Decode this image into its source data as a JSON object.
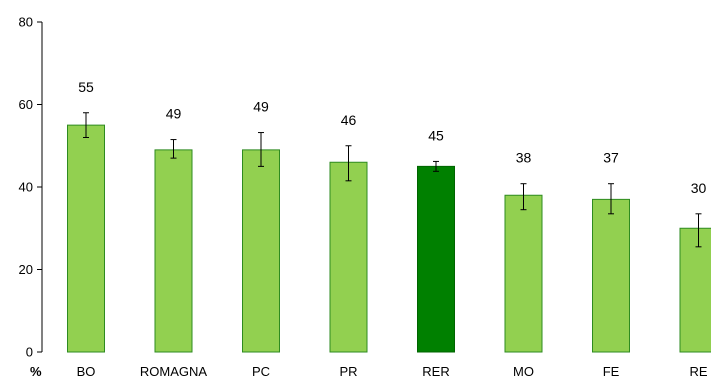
{
  "chart_data": {
    "type": "bar",
    "title": "",
    "xlabel": "",
    "ylabel": "%",
    "ylim": [
      0,
      80
    ],
    "yticks": [
      0,
      20,
      40,
      60,
      80
    ],
    "grid": false,
    "categories": [
      "BO",
      "ROMAGNA",
      "PC",
      "PR",
      "RER",
      "MO",
      "FE",
      "RE"
    ],
    "values": [
      55,
      49,
      49,
      46,
      45,
      38,
      37,
      30
    ],
    "value_labels": [
      "55",
      "49",
      "49",
      "46",
      "45",
      "38",
      "37",
      "30"
    ],
    "error_low": [
      52,
      47,
      45,
      41.5,
      43.8,
      34.5,
      33.5,
      25.5
    ],
    "error_high": [
      58,
      51.5,
      53.2,
      50,
      46.2,
      40.8,
      40.8,
      33.5
    ],
    "colors": {
      "bar": "#92D050",
      "bar_border": "#2E8B20",
      "highlight": "#008000",
      "highlight_border": "#006400",
      "axis": "#000000"
    },
    "highlight_category": "RER"
  }
}
